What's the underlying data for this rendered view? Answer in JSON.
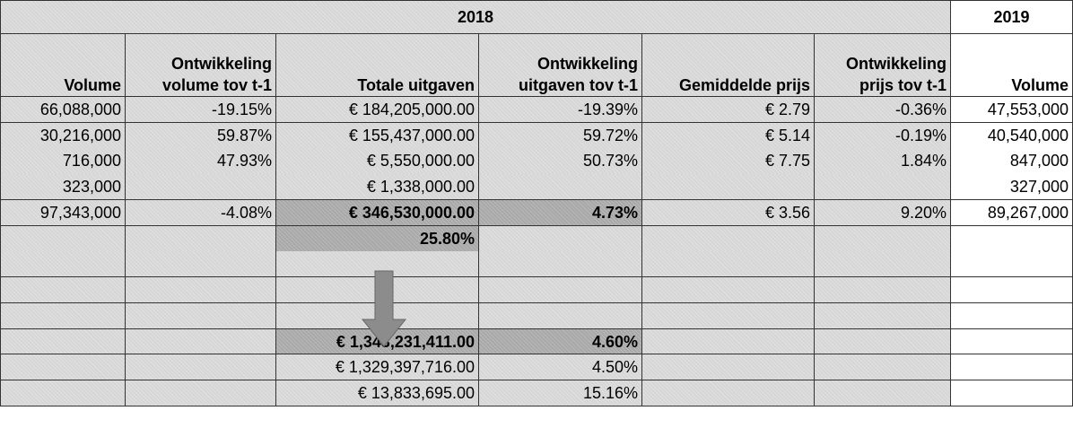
{
  "header": {
    "year_2018": "2018",
    "year_2019": "2019"
  },
  "columns": [
    [
      "Volume"
    ],
    [
      "Ontwikkeling",
      "volume tov t-1"
    ],
    [
      "Totale uitgaven"
    ],
    [
      "Ontwikkeling",
      "uitgaven tov t-1"
    ],
    [
      "Gemiddelde prijs"
    ],
    [
      "Ontwikkeling",
      "prijs tov t-1"
    ],
    [
      "Volume"
    ]
  ],
  "table": {
    "rows": [
      [
        "66,088,000",
        "-19.15%",
        "€ 184,205,000.00",
        "-19.39%",
        "€ 2.79",
        "-0.36%",
        "47,553,000"
      ],
      [
        "30,216,000",
        "59.87%",
        "€ 155,437,000.00",
        "59.72%",
        "€ 5.14",
        "-0.19%",
        "40,540,000"
      ],
      [
        "716,000",
        "47.93%",
        "€ 5,550,000.00",
        "50.73%",
        "€ 7.75",
        "1.84%",
        "847,000"
      ],
      [
        "323,000",
        null,
        "€ 1,338,000.00",
        null,
        null,
        null,
        "327,000"
      ],
      [
        "97,343,000",
        "-4.08%",
        "€ 346,530,000.00",
        "4.73%",
        "€ 3.56",
        "9.20%",
        "89,267,000"
      ],
      [
        null,
        null,
        "25.80%",
        null,
        null,
        null,
        null
      ],
      [
        null,
        null,
        null,
        null,
        null,
        null,
        null
      ],
      [
        null,
        null,
        null,
        null,
        null,
        null,
        null
      ],
      [
        null,
        null,
        null,
        null,
        null,
        null,
        null
      ],
      [
        null,
        null,
        "€ 1,343,231,411.00",
        "4.60%",
        null,
        null,
        null
      ],
      [
        null,
        null,
        "€ 1,329,397,716.00",
        "4.50%",
        null,
        null,
        null
      ],
      [
        null,
        null,
        "€ 13,833,695.00",
        "15.16%",
        null,
        null,
        null
      ]
    ]
  }
}
